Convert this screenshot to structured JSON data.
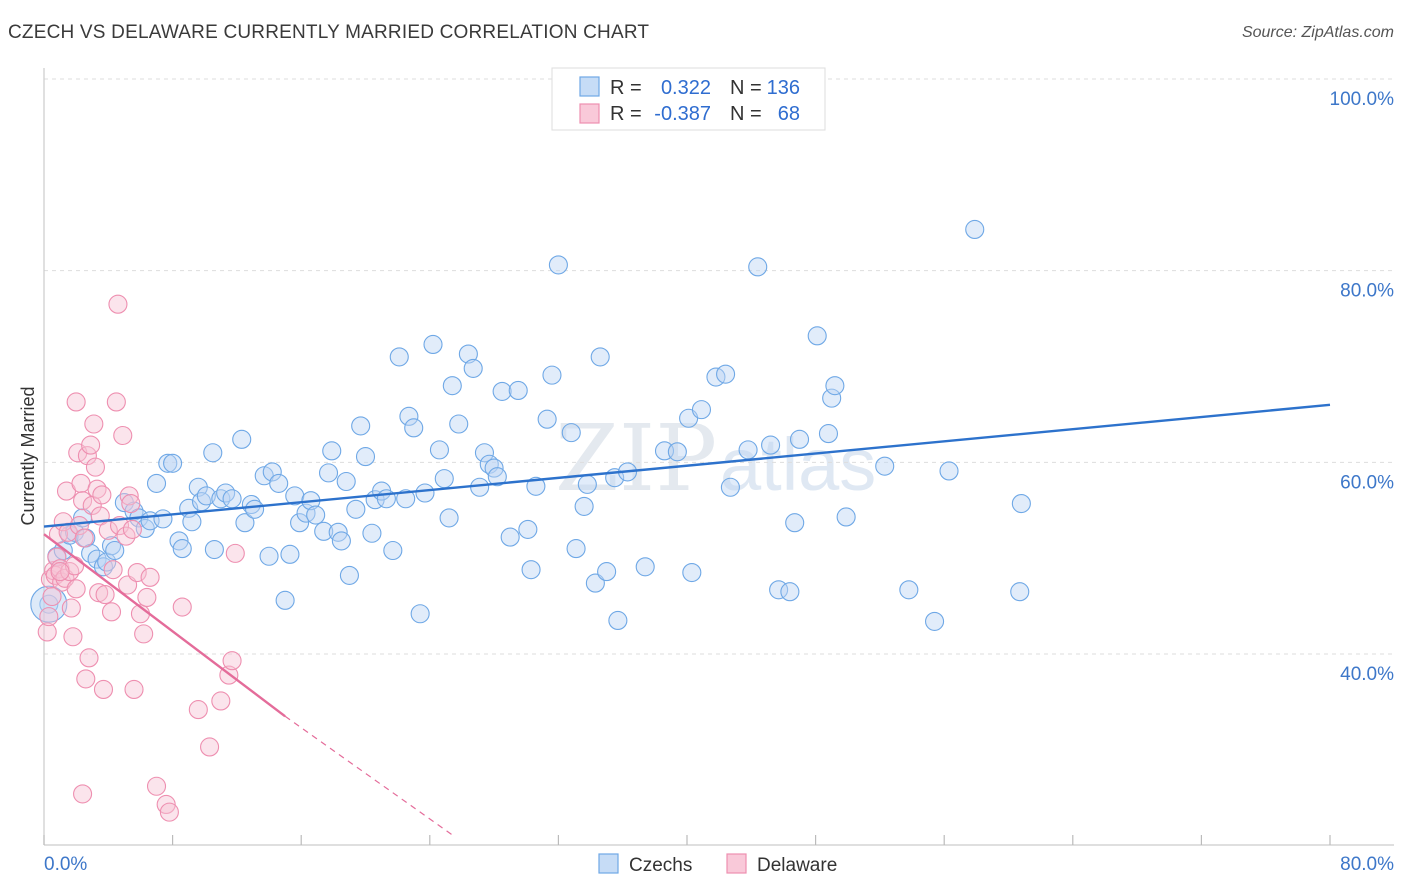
{
  "title": "CZECH VS DELAWARE CURRENTLY MARRIED CORRELATION CHART",
  "source": "Source: ZipAtlas.com",
  "watermark": {
    "zip": "ZIP",
    "atlas": "atlas"
  },
  "legend": {
    "r_label": "R =",
    "n_label": "N =",
    "rows": [
      {
        "name": "Czechs",
        "r": "0.322",
        "n": "136",
        "color": "#6fa8e6"
      },
      {
        "name": "Delaware",
        "r": "-0.387",
        "n": "68",
        "color": "#ee8fb0"
      }
    ]
  },
  "chart_data": {
    "type": "scatter",
    "title": "CZECH VS DELAWARE CURRENTLY MARRIED CORRELATION CHART",
    "xlabel": "",
    "ylabel": "Currently Married",
    "xlim": [
      0,
      80
    ],
    "ylim": [
      21,
      102
    ],
    "x_tick_labels": [
      "0.0%",
      "80.0%"
    ],
    "y_ticks": [
      40,
      60,
      80,
      100
    ],
    "y_tick_labels": [
      "40.0%",
      "60.0%",
      "80.0%",
      "100.0%"
    ],
    "grid": true,
    "legend_position": "top-center",
    "series": [
      {
        "name": "Czechs",
        "color": "#6fa8e6",
        "trend_color": "#2d72cc",
        "trend": {
          "x0": 0,
          "y0": 53.3,
          "x1": 80,
          "y1": 66.0
        },
        "points": [
          [
            0.3,
            45.2
          ],
          [
            0.8,
            50.2
          ],
          [
            1.2,
            50.8
          ],
          [
            1.6,
            52.4
          ],
          [
            1.9,
            52.7
          ],
          [
            2.4,
            54.2
          ],
          [
            2.6,
            52.1
          ],
          [
            2.9,
            50.5
          ],
          [
            3.3,
            49.9
          ],
          [
            3.7,
            49.1
          ],
          [
            3.9,
            49.6
          ],
          [
            4.2,
            51.3
          ],
          [
            4.4,
            50.8
          ],
          [
            5.0,
            55.8
          ],
          [
            5.6,
            54.9
          ],
          [
            5.9,
            54.2
          ],
          [
            6.3,
            53.1
          ],
          [
            6.6,
            53.9
          ],
          [
            7.0,
            57.8
          ],
          [
            7.4,
            54.1
          ],
          [
            7.7,
            59.9
          ],
          [
            8.0,
            59.9
          ],
          [
            8.4,
            51.8
          ],
          [
            8.6,
            51.0
          ],
          [
            9.0,
            55.2
          ],
          [
            9.2,
            53.8
          ],
          [
            9.6,
            57.4
          ],
          [
            9.8,
            55.9
          ],
          [
            10.1,
            56.5
          ],
          [
            10.5,
            61.0
          ],
          [
            10.6,
            50.9
          ],
          [
            11.0,
            56.2
          ],
          [
            11.3,
            56.8
          ],
          [
            11.7,
            56.2
          ],
          [
            12.3,
            62.4
          ],
          [
            12.5,
            53.7
          ],
          [
            12.9,
            55.6
          ],
          [
            13.1,
            55.1
          ],
          [
            13.7,
            58.6
          ],
          [
            14.0,
            50.2
          ],
          [
            14.2,
            59.0
          ],
          [
            14.6,
            57.8
          ],
          [
            15.0,
            45.6
          ],
          [
            15.3,
            50.4
          ],
          [
            15.6,
            56.5
          ],
          [
            15.9,
            53.7
          ],
          [
            16.3,
            54.7
          ],
          [
            16.6,
            56.0
          ],
          [
            16.9,
            54.5
          ],
          [
            17.4,
            52.8
          ],
          [
            17.7,
            58.9
          ],
          [
            17.9,
            61.2
          ],
          [
            18.3,
            52.7
          ],
          [
            18.5,
            51.8
          ],
          [
            18.8,
            58.0
          ],
          [
            19.0,
            48.2
          ],
          [
            19.4,
            55.1
          ],
          [
            19.7,
            63.8
          ],
          [
            20.0,
            60.6
          ],
          [
            20.4,
            52.6
          ],
          [
            20.6,
            56.1
          ],
          [
            21.0,
            57.0
          ],
          [
            21.3,
            56.2
          ],
          [
            21.7,
            50.8
          ],
          [
            22.1,
            71.0
          ],
          [
            22.5,
            56.2
          ],
          [
            22.7,
            64.8
          ],
          [
            23.0,
            63.6
          ],
          [
            23.4,
            44.2
          ],
          [
            23.7,
            56.8
          ],
          [
            24.2,
            72.3
          ],
          [
            24.6,
            61.3
          ],
          [
            24.9,
            58.3
          ],
          [
            25.2,
            54.2
          ],
          [
            25.4,
            68.0
          ],
          [
            25.8,
            64.0
          ],
          [
            26.4,
            71.3
          ],
          [
            26.7,
            69.8
          ],
          [
            27.1,
            57.4
          ],
          [
            27.4,
            61.0
          ],
          [
            27.7,
            59.8
          ],
          [
            28.0,
            59.4
          ],
          [
            28.2,
            58.5
          ],
          [
            28.5,
            67.4
          ],
          [
            29.0,
            52.2
          ],
          [
            29.5,
            67.5
          ],
          [
            30.1,
            53.0
          ],
          [
            30.3,
            48.8
          ],
          [
            30.6,
            57.5
          ],
          [
            31.3,
            64.5
          ],
          [
            31.6,
            69.1
          ],
          [
            32.0,
            80.6
          ],
          [
            32.8,
            63.1
          ],
          [
            33.1,
            51.0
          ],
          [
            33.6,
            55.4
          ],
          [
            33.8,
            57.7
          ],
          [
            34.3,
            47.4
          ],
          [
            34.6,
            71.0
          ],
          [
            35.0,
            48.6
          ],
          [
            35.5,
            58.4
          ],
          [
            35.7,
            43.5
          ],
          [
            36.3,
            59.0
          ],
          [
            37.4,
            49.1
          ],
          [
            38.6,
            61.2
          ],
          [
            39.4,
            61.1
          ],
          [
            40.3,
            48.5
          ],
          [
            40.1,
            64.6
          ],
          [
            40.9,
            65.5
          ],
          [
            41.8,
            68.9
          ],
          [
            42.4,
            69.2
          ],
          [
            42.7,
            57.4
          ],
          [
            43.8,
            61.3
          ],
          [
            44.4,
            80.4
          ],
          [
            45.2,
            61.8
          ],
          [
            45.7,
            46.7
          ],
          [
            46.4,
            46.5
          ],
          [
            47.0,
            62.4
          ],
          [
            46.7,
            53.7
          ],
          [
            48.1,
            73.2
          ],
          [
            48.8,
            63.0
          ],
          [
            49.0,
            66.7
          ],
          [
            49.2,
            68.0
          ],
          [
            49.9,
            54.3
          ],
          [
            52.3,
            59.6
          ],
          [
            53.8,
            46.7
          ],
          [
            55.4,
            43.4
          ],
          [
            56.3,
            59.1
          ],
          [
            57.9,
            84.3
          ],
          [
            60.8,
            55.7
          ],
          [
            60.7,
            46.5
          ]
        ],
        "r": 0.322,
        "n": 136
      },
      {
        "name": "Delaware",
        "color": "#ee8fb0",
        "trend_color": "#e46c9a",
        "trend": {
          "x0": 0,
          "y0": 52.5,
          "x1": 15.0,
          "y1": 33.5
        },
        "trend_dashed_to": {
          "x": 25.5,
          "y": 21
        },
        "points": [
          [
            0.2,
            42.3
          ],
          [
            0.3,
            43.9
          ],
          [
            0.4,
            47.8
          ],
          [
            0.6,
            48.7
          ],
          [
            0.7,
            48.2
          ],
          [
            0.8,
            50.1
          ],
          [
            0.9,
            52.5
          ],
          [
            1.0,
            48.9
          ],
          [
            1.1,
            47.5
          ],
          [
            1.2,
            53.8
          ],
          [
            1.3,
            47.9
          ],
          [
            1.4,
            57.0
          ],
          [
            1.5,
            52.7
          ],
          [
            1.6,
            48.6
          ],
          [
            1.7,
            44.8
          ],
          [
            1.8,
            41.8
          ],
          [
            1.9,
            49.2
          ],
          [
            2.0,
            66.3
          ],
          [
            2.1,
            61.0
          ],
          [
            2.2,
            53.4
          ],
          [
            2.3,
            57.8
          ],
          [
            2.4,
            56.0
          ],
          [
            2.5,
            52.1
          ],
          [
            2.6,
            37.4
          ],
          [
            2.7,
            60.7
          ],
          [
            2.8,
            39.6
          ],
          [
            2.9,
            61.8
          ],
          [
            3.0,
            55.5
          ],
          [
            3.1,
            64.0
          ],
          [
            3.2,
            59.5
          ],
          [
            3.3,
            57.2
          ],
          [
            3.4,
            46.4
          ],
          [
            3.5,
            54.4
          ],
          [
            3.6,
            56.6
          ],
          [
            3.7,
            36.3
          ],
          [
            3.8,
            46.2
          ],
          [
            4.0,
            52.9
          ],
          [
            4.2,
            44.4
          ],
          [
            4.3,
            48.8
          ],
          [
            4.5,
            66.3
          ],
          [
            4.7,
            53.4
          ],
          [
            4.9,
            62.8
          ],
          [
            5.1,
            52.3
          ],
          [
            5.2,
            47.2
          ],
          [
            5.3,
            56.5
          ],
          [
            5.4,
            55.7
          ],
          [
            5.5,
            53.0
          ],
          [
            5.6,
            36.3
          ],
          [
            5.8,
            48.5
          ],
          [
            6.0,
            44.2
          ],
          [
            6.2,
            42.1
          ],
          [
            6.4,
            45.9
          ],
          [
            6.6,
            48.0
          ],
          [
            7.0,
            26.2
          ],
          [
            7.6,
            24.3
          ],
          [
            7.8,
            23.5
          ],
          [
            8.6,
            44.9
          ],
          [
            9.6,
            34.2
          ],
          [
            10.3,
            30.3
          ],
          [
            11.0,
            35.1
          ],
          [
            11.5,
            37.8
          ],
          [
            11.7,
            39.3
          ],
          [
            11.9,
            50.5
          ],
          [
            0.5,
            46.0
          ],
          [
            1.0,
            48.6
          ],
          [
            2.0,
            46.8
          ],
          [
            2.4,
            25.4
          ],
          [
            4.6,
            76.5
          ]
        ],
        "r": -0.387,
        "n": 68
      }
    ]
  },
  "bottom_legend": [
    {
      "label": "Czechs",
      "color": "#6fa8e6"
    },
    {
      "label": "Delaware",
      "color": "#ee8fb0"
    }
  ]
}
